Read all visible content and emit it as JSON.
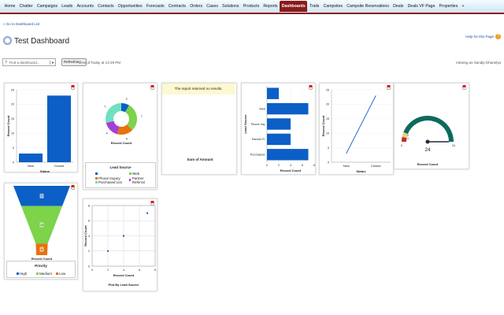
{
  "nav": {
    "tabs": [
      "Home",
      "Chatter",
      "Campaigns",
      "Leads",
      "Accounts",
      "Contacts",
      "Opportunities",
      "Forecasts",
      "Contracts",
      "Orders",
      "Cases",
      "Solutions",
      "Products",
      "Reports",
      "Dashboards",
      "Trails",
      "Campsites",
      "Campsite Reservations",
      "Deals",
      "Deals VF Page",
      "Properties",
      "+"
    ],
    "active": "Dashboards"
  },
  "page": {
    "back_link": "« Go to Dashboard List",
    "title": "Test Dashboard",
    "help": "Help for this Page",
    "find_placeholder": "Find a dashboard...",
    "refresh_button": "Refreshing...",
    "as_of": "As of Today at 12:29 PM",
    "viewing_as": "Viewing as Sandip Dhanelya"
  },
  "colors": {
    "blue": "#0b5fc6",
    "green": "#7dd34a",
    "orange": "#e8720c",
    "purple": "#a43fd6",
    "teal": "#6fe0c0",
    "gauge": "#0e6a5c"
  },
  "chart_data": [
    {
      "type": "bar",
      "categories": [
        "New",
        "Closed"
      ],
      "values": [
        3,
        23
      ],
      "xlabel": "Status",
      "ylabel": "Record Count",
      "ylim": [
        0,
        25
      ],
      "yticks": [
        0,
        5,
        10,
        15,
        20,
        25
      ]
    },
    {
      "type": "pie",
      "donut": true,
      "labels": [
        "-",
        "Web",
        "Phone Inquiry",
        "Partner Referral",
        "Purchased List"
      ],
      "values": [
        2,
        7,
        4,
        4,
        7
      ],
      "xlabel": "Record Count",
      "legend_title": "Lead Source"
    },
    {
      "type": "table",
      "message": "The report returned no results.",
      "xlabel": "Sum of Amount"
    },
    {
      "type": "bar",
      "orientation": "horizontal",
      "categories": [
        "",
        "Web",
        "Phone Inq.",
        "Partner R.",
        "Purchased."
      ],
      "values": [
        2,
        7,
        4,
        4,
        7
      ],
      "xlabel": "Record Count",
      "ylabel": "Lead Source",
      "xlim": [
        0,
        8
      ],
      "xticks": [
        0,
        2,
        4,
        6,
        8
      ]
    },
    {
      "type": "line",
      "categories": [
        "New",
        "Closed"
      ],
      "values": [
        3,
        23
      ],
      "xlabel": "Status",
      "ylabel": "Record Count",
      "ylim": [
        0,
        25
      ],
      "yticks": [
        0,
        5,
        10,
        15,
        20,
        25
      ]
    },
    {
      "type": "gauge",
      "value": 24,
      "min": 0,
      "max": 24,
      "band_labels": [
        "2",
        "1"
      ],
      "min_label": "0",
      "max_label": "24",
      "value_label": "24",
      "xlabel": "Record Count"
    },
    {
      "type": "funnel",
      "labels": [
        "High",
        "Medium",
        "Low"
      ],
      "values": [
        7,
        13,
        4
      ],
      "value_labels": [
        "7",
        "13",
        "4"
      ],
      "xlabel": "Record Count",
      "legend_title": "Priority"
    },
    {
      "type": "scatter",
      "x": [
        2,
        4,
        7
      ],
      "y": [
        2,
        4,
        7
      ],
      "xlim": [
        0,
        8
      ],
      "ylim": [
        0,
        8
      ],
      "xticks": [
        0,
        2,
        4,
        6,
        8
      ],
      "yticks": [
        0,
        2,
        4,
        6,
        8
      ],
      "xlabel": "Record Count",
      "ylabel": "Record Count",
      "title": "Plot By Lead Source"
    }
  ]
}
